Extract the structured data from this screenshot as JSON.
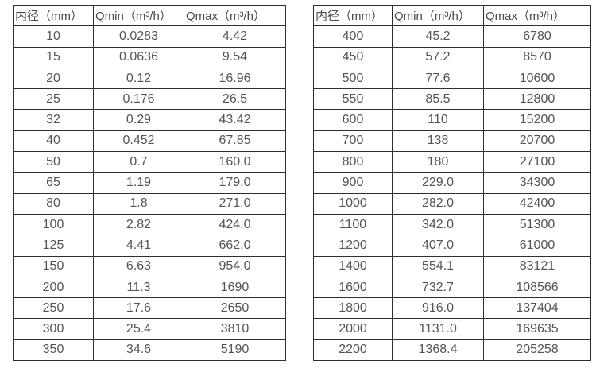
{
  "page": {
    "background": "#ffffff",
    "border_color": "#2f2f2f",
    "text_color": "#4f4f4f"
  },
  "tables": [
    {
      "name": "flow-rate-table-small-diameters",
      "headers": [
        "内径（mm）",
        "Qmin（m³/h）",
        "Qmax（m³/h）"
      ],
      "rows": [
        [
          "10",
          "0.0283",
          "4.42"
        ],
        [
          "15",
          "0.0636",
          "9.54"
        ],
        [
          "20",
          "0.12",
          "16.96"
        ],
        [
          "25",
          "0.176",
          "26.5"
        ],
        [
          "32",
          "0.29",
          "43.42"
        ],
        [
          "40",
          "0.452",
          "67.85"
        ],
        [
          "50",
          "0.7",
          "160.0"
        ],
        [
          "65",
          "1.19",
          "179.0"
        ],
        [
          "80",
          "1.8",
          "271.0"
        ],
        [
          "100",
          "2.82",
          "424.0"
        ],
        [
          "125",
          "4.41",
          "662.0"
        ],
        [
          "150",
          "6.63",
          "954.0"
        ],
        [
          "200",
          "11.3",
          "1690"
        ],
        [
          "250",
          "17.6",
          "2650"
        ],
        [
          "300",
          "25.4",
          "3810"
        ],
        [
          "350",
          "34.6",
          "5190"
        ]
      ]
    },
    {
      "name": "flow-rate-table-large-diameters",
      "headers": [
        "内径（mm）",
        "Qmin（m³/h）",
        "Qmax（m³/h）"
      ],
      "rows": [
        [
          "400",
          "45.2",
          "6780"
        ],
        [
          "450",
          "57.2",
          "8570"
        ],
        [
          "500",
          "77.6",
          "10600"
        ],
        [
          "550",
          "85.5",
          "12800"
        ],
        [
          "600",
          "110",
          "15200"
        ],
        [
          "700",
          "138",
          "20700"
        ],
        [
          "800",
          "180",
          "27100"
        ],
        [
          "900",
          "229.0",
          "34300"
        ],
        [
          "1000",
          "282.0",
          "42400"
        ],
        [
          "1100",
          "342.0",
          "51300"
        ],
        [
          "1200",
          "407.0",
          "61000"
        ],
        [
          "1400",
          "554.1",
          "83121"
        ],
        [
          "1600",
          "732.7",
          "108566"
        ],
        [
          "1800",
          "916.0",
          "137404"
        ],
        [
          "2000",
          "1131.0",
          "169635"
        ],
        [
          "2200",
          "1368.4",
          "205258"
        ]
      ]
    }
  ]
}
